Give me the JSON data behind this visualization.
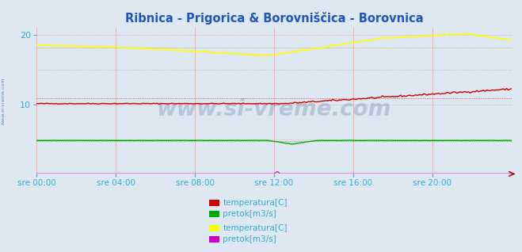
{
  "title": "Ribnica - Prigorica & Borovniščica - Borovnica",
  "title_color": "#2255bb",
  "bg_color": "#dde8f2",
  "plot_bg_color": "#dde8f2",
  "x_label_color": "#33aacc",
  "y_label_color": "#33aacc",
  "grid_v_color": "#ffaaaa",
  "grid_h_dotted_color": "#ff8888",
  "ylim_max": 21,
  "yticks": [
    10,
    20
  ],
  "xtick_labels": [
    "sre 00:00",
    "sre 04:00",
    "sre 08:00",
    "sre 12:00",
    "sre 16:00",
    "sre 20:00"
  ],
  "n_points": 288,
  "color_red": "#cc0000",
  "color_green": "#00aa00",
  "color_yellow": "#ffff00",
  "color_magenta": "#cc00cc",
  "watermark": "www.si-vreme.com",
  "watermark_color": "#1a3a7a",
  "watermark_alpha": 0.2,
  "side_label": "www.si-vreme.com",
  "side_label_color": "#4477aa",
  "legend1_labels": [
    "temperatura[C]",
    "pretok[m3/s]"
  ],
  "legend2_labels": [
    "temperatura[C]",
    "pretok[m3/s]"
  ]
}
